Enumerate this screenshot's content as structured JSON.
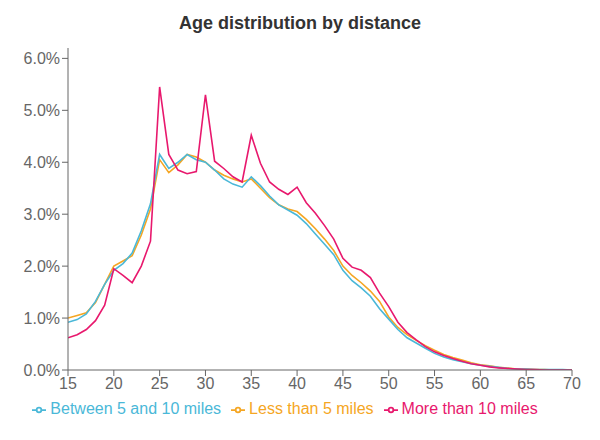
{
  "chart_data": {
    "type": "line",
    "title": "Age distribution by distance",
    "x": [
      15,
      16,
      17,
      18,
      19,
      20,
      21,
      22,
      23,
      24,
      25,
      26,
      27,
      28,
      29,
      30,
      31,
      32,
      33,
      34,
      35,
      36,
      37,
      38,
      39,
      40,
      41,
      42,
      43,
      44,
      45,
      46,
      47,
      48,
      49,
      50,
      51,
      52,
      53,
      54,
      55,
      56,
      57,
      58,
      59,
      60,
      61,
      62,
      63,
      64,
      65,
      66,
      67,
      68,
      69,
      70
    ],
    "series": [
      {
        "name": "Less than 5 miles",
        "color": "#f5a623",
        "values": [
          0.01,
          0.0105,
          0.011,
          0.013,
          0.0165,
          0.02,
          0.021,
          0.022,
          0.026,
          0.031,
          0.0405,
          0.038,
          0.0395,
          0.0415,
          0.041,
          0.04,
          0.0385,
          0.0375,
          0.0368,
          0.0362,
          0.0368,
          0.035,
          0.0332,
          0.0318,
          0.031,
          0.0305,
          0.029,
          0.0272,
          0.0252,
          0.023,
          0.02,
          0.0182,
          0.0168,
          0.0152,
          0.0132,
          0.0102,
          0.0082,
          0.0068,
          0.0057,
          0.0047,
          0.0038,
          0.003,
          0.0024,
          0.0019,
          0.0014,
          0.001,
          0.0008,
          0.0005,
          0.0004,
          0.0002,
          0.0002,
          0.0001,
          0.0001,
          0.0,
          0.0,
          0.0
        ]
      },
      {
        "name": "Between 5 and 10 miles",
        "color": "#4ab8d8",
        "values": [
          0.0092,
          0.0097,
          0.0108,
          0.0132,
          0.0165,
          0.0192,
          0.0205,
          0.0225,
          0.0268,
          0.032,
          0.0415,
          0.0388,
          0.04,
          0.0415,
          0.0405,
          0.04,
          0.0385,
          0.0368,
          0.0358,
          0.0352,
          0.0372,
          0.0355,
          0.0335,
          0.0318,
          0.0308,
          0.0298,
          0.0282,
          0.0262,
          0.0242,
          0.0222,
          0.0192,
          0.0172,
          0.0158,
          0.0142,
          0.0118,
          0.0098,
          0.0078,
          0.0062,
          0.0052,
          0.0042,
          0.0032,
          0.0025,
          0.002,
          0.0016,
          0.0012,
          0.0009,
          0.0007,
          0.0005,
          0.0003,
          0.0002,
          0.0002,
          0.0001,
          0.0001,
          0.0001,
          0.0001,
          0.0
        ]
      },
      {
        "name": "More than 10 miles",
        "color": "#e8186d",
        "values": [
          0.0062,
          0.0068,
          0.0078,
          0.0095,
          0.0125,
          0.0195,
          0.0182,
          0.0168,
          0.02,
          0.0248,
          0.0545,
          0.0415,
          0.0385,
          0.0378,
          0.0382,
          0.053,
          0.0402,
          0.0388,
          0.0372,
          0.0362,
          0.0452,
          0.0398,
          0.0362,
          0.0348,
          0.0338,
          0.0352,
          0.0322,
          0.0302,
          0.0278,
          0.0252,
          0.0215,
          0.0198,
          0.0192,
          0.0178,
          0.0148,
          0.0122,
          0.0092,
          0.0072,
          0.0058,
          0.0045,
          0.0035,
          0.0028,
          0.0022,
          0.0017,
          0.0012,
          0.0009,
          0.0006,
          0.0004,
          0.0003,
          0.0002,
          0.0001,
          0.0001,
          0.0,
          0.0,
          0.0,
          0.0
        ]
      }
    ],
    "xlim": [
      15,
      70
    ],
    "ylim": [
      0.0,
      0.062
    ],
    "xticks": [
      15,
      20,
      25,
      30,
      35,
      40,
      45,
      50,
      55,
      60,
      65,
      70
    ],
    "yticks": [
      {
        "value": 0.0,
        "label": "0.0%"
      },
      {
        "value": 0.01,
        "label": "1.0%"
      },
      {
        "value": 0.02,
        "label": "2.0%"
      },
      {
        "value": 0.03,
        "label": "3.0%"
      },
      {
        "value": 0.04,
        "label": "4.0%"
      },
      {
        "value": 0.05,
        "label": "5.0%"
      },
      {
        "value": 0.06,
        "label": "6.0%"
      }
    ],
    "grid": false,
    "legend": "bottom"
  }
}
